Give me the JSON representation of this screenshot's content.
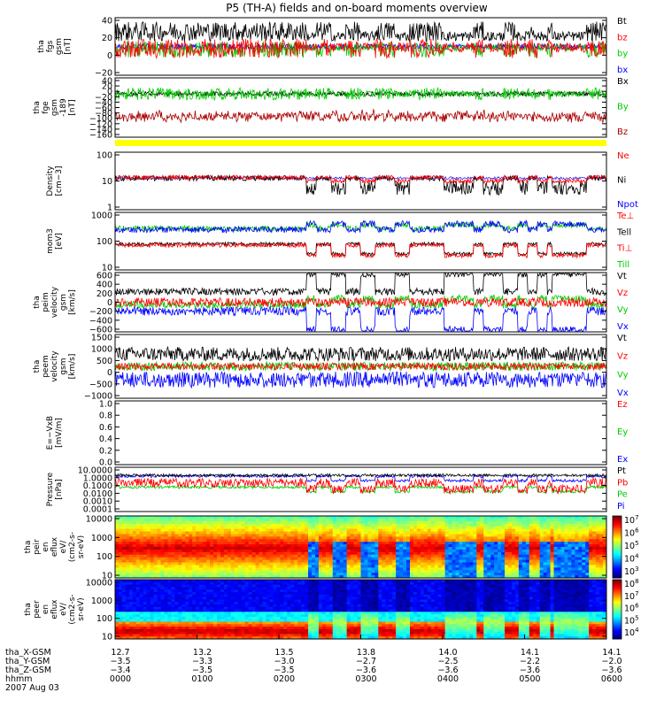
{
  "chart_data": {
    "type": "line",
    "title": "P5 (TH-A) fields and on-board moments overview",
    "panels": [
      {
        "id": "fgs",
        "ylabel": [
          "tha",
          "fgs",
          "gsm",
          "[nT]"
        ],
        "yticks": [
          "40",
          "20",
          "0",
          "−20"
        ],
        "legend": [
          {
            "name": "Bt",
            "color": "#000000"
          },
          {
            "name": "bz",
            "color": "#ff0000"
          },
          {
            "name": "by",
            "color": "#00cc00"
          },
          {
            "name": "bx",
            "color": "#0000ff"
          }
        ]
      },
      {
        "id": "fge",
        "ylabel": [
          "tha",
          "fge",
          "gsm",
          "-189",
          "[nT]"
        ],
        "yticks": [
          "40",
          "20",
          "0",
          "−20",
          "−40",
          "−60",
          "−80",
          "−100",
          "−120",
          "−140",
          "−160"
        ],
        "legend": [
          {
            "name": "Bx",
            "color": "#000000"
          },
          {
            "name": "By",
            "color": "#00cc00"
          },
          {
            "name": "Bz",
            "color": "#aa0000"
          }
        ]
      },
      {
        "id": "density",
        "ylabel": [
          "Density",
          "[cm−3]"
        ],
        "yticks": [
          "100",
          "10",
          "1"
        ],
        "legend": [
          {
            "name": "Ne",
            "color": "#ff0000"
          },
          {
            "name": "Ni",
            "color": "#000000"
          },
          {
            "name": "Npot",
            "color": "#0000ff"
          }
        ]
      },
      {
        "id": "temp",
        "ylabel": [
          "mom3",
          "[eV]"
        ],
        "yticks": [
          "1000",
          "100",
          "10"
        ],
        "legend": [
          {
            "name": "Te⊥",
            "color": "#ff0000"
          },
          {
            "name": "Tell",
            "color": "#000000"
          },
          {
            "name": "Ti⊥",
            "color": "#ff0000"
          },
          {
            "name": "Till",
            "color": "#00cc00"
          }
        ]
      },
      {
        "id": "peim",
        "ylabel": [
          "tha",
          "peim",
          "velocity",
          "gsm",
          "[km/s]"
        ],
        "yticks": [
          "600",
          "400",
          "200",
          "0",
          "−200",
          "−400",
          "−600"
        ],
        "legend": [
          {
            "name": "Vt",
            "color": "#000000"
          },
          {
            "name": "Vz",
            "color": "#ff0000"
          },
          {
            "name": "Vy",
            "color": "#00cc00"
          },
          {
            "name": "Vx",
            "color": "#0000ff"
          }
        ]
      },
      {
        "id": "peem",
        "ylabel": [
          "tha",
          "peem",
          "velocity",
          "gsm",
          "[km/s]"
        ],
        "yticks": [
          "1500",
          "1000",
          "500",
          "0",
          "−500",
          "−1000"
        ],
        "legend": [
          {
            "name": "Vt",
            "color": "#000000"
          },
          {
            "name": "Vz",
            "color": "#ff0000"
          },
          {
            "name": "Vy",
            "color": "#00cc00"
          },
          {
            "name": "Vx",
            "color": "#0000ff"
          }
        ]
      },
      {
        "id": "efield",
        "ylabel": [
          "E=−VxB",
          "[mV/m]"
        ],
        "yticks": [
          "1.0",
          "0.8",
          "0.6",
          "0.4",
          "0.2",
          "0.0"
        ],
        "legend": [
          {
            "name": "Ez",
            "color": "#ff0000"
          },
          {
            "name": "Ey",
            "color": "#00cc00"
          },
          {
            "name": "Ex",
            "color": "#0000ff"
          }
        ]
      },
      {
        "id": "pressure",
        "ylabel": [
          "Pressure",
          "[nPa]"
        ],
        "yticks": [
          "10.0000",
          "1.0000",
          "0.1000",
          "0.0100",
          "0.0010",
          "0.0001"
        ],
        "legend": [
          {
            "name": "Pt",
            "color": "#000000"
          },
          {
            "name": "Pb",
            "color": "#ff0000"
          },
          {
            "name": "Pe",
            "color": "#00cc00"
          },
          {
            "name": "Pi",
            "color": "#0000ff"
          }
        ]
      },
      {
        "id": "peir",
        "ylabel": [
          "tha",
          "peir",
          "en",
          "eflux",
          "eV/",
          "(cm2-s-",
          "sr-eV)"
        ],
        "yticks": [
          "10000",
          "1000",
          "100",
          "10"
        ],
        "colorbar": [
          "10^7",
          "10^6",
          "10^5",
          "10^4",
          "10^3"
        ]
      },
      {
        "id": "peer",
        "ylabel": [
          "tha",
          "peer",
          "en",
          "eflux",
          "eV/",
          "(cm2-s-",
          "sr-eV)"
        ],
        "yticks": [
          "10000",
          "1000",
          "100",
          "10"
        ],
        "colorbar": [
          "10^8",
          "10^7",
          "10^6",
          "10^5",
          "10^4"
        ]
      }
    ],
    "x_axis": {
      "row_labels": [
        "tha_X-GSM",
        "tha_Y-GSM",
        "tha_Z-GSM",
        "hhmm"
      ],
      "columns": [
        {
          "x": "12.7",
          "y": "−3.5",
          "z": "−3.4",
          "t": "0000"
        },
        {
          "x": "13.2",
          "y": "−3.3",
          "z": "−3.5",
          "t": "0100"
        },
        {
          "x": "13.5",
          "y": "−3.0",
          "z": "−3.5",
          "t": "0200"
        },
        {
          "x": "13.8",
          "y": "−2.7",
          "z": "−3.6",
          "t": "0300"
        },
        {
          "x": "14.0",
          "y": "−2.5",
          "z": "−3.6",
          "t": "0400"
        },
        {
          "x": "14.1",
          "y": "−2.2",
          "z": "−3.6",
          "t": "0500"
        },
        {
          "x": "14.1",
          "y": "−2.0",
          "z": "−3.6",
          "t": "0600"
        }
      ],
      "date": "2007 Aug 03"
    }
  }
}
